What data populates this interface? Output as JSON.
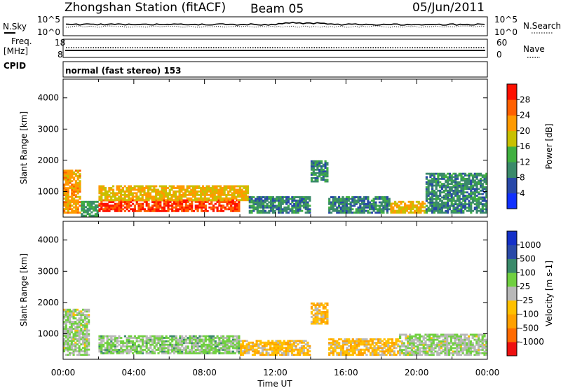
{
  "header": {
    "station": "Zhongshan Station (fitACF)",
    "beam": "Beam 05",
    "date": "05/Jun/2011"
  },
  "summary": {
    "nsky_label": "N.Sky",
    "nsearch_label": "N.Search",
    "noise_ticks": [
      "10^5",
      "10^0"
    ],
    "freq_label": "Freq.",
    "freq_unit": "[MHz]",
    "freq_ticks": [
      "18",
      "8"
    ],
    "nave_label": "Nave",
    "nave_ticks": [
      "60",
      "0"
    ],
    "cpid_label": "CPID",
    "cpid_text": "normal (fast stereo) 153"
  },
  "axes": {
    "xlabel": "Time UT",
    "x_ticks": [
      "00:00",
      "04:00",
      "08:00",
      "12:00",
      "16:00",
      "20:00",
      "00:00"
    ],
    "ylabel": "Slant Range [km]",
    "y_ticks": [
      "4000",
      "3000",
      "2000",
      "1000"
    ]
  },
  "colors": {
    "power": [
      "#1030ff",
      "#2848a8",
      "#3a8a6a",
      "#40b040",
      "#c8c000",
      "#ff9a00",
      "#ff6000",
      "#ff1000"
    ],
    "velocity": [
      "#ee1010",
      "#ff6a00",
      "#ffa000",
      "#ffc000",
      "#b8b8b8",
      "#70d040",
      "#3a8a6a",
      "#2a4aa8",
      "#1430c8"
    ]
  },
  "chart_data": [
    {
      "type": "heatmap",
      "name": "Power [dB]",
      "title": "",
      "xlabel": "Time UT",
      "ylabel": "Slant Range [km]",
      "xlim": [
        "00:00",
        "24:00"
      ],
      "ylim": [
        180,
        4600
      ],
      "colorbar": {
        "label": "Power [dB]",
        "ticks": [
          "28",
          "24",
          "20",
          "16",
          "12",
          "8",
          "4"
        ],
        "range": [
          0,
          32
        ]
      },
      "regions": [
        {
          "t": [
            0.0,
            1.0
          ],
          "r": [
            300,
            1700
          ],
          "value": 22
        },
        {
          "t": [
            1.0,
            2.0
          ],
          "r": [
            200,
            700
          ],
          "value": 12
        },
        {
          "t": [
            2.0,
            10.0
          ],
          "r": [
            350,
            750
          ],
          "value": 28
        },
        {
          "t": [
            2.0,
            10.5
          ],
          "r": [
            700,
            1200
          ],
          "value": 20
        },
        {
          "t": [
            10.5,
            14.0
          ],
          "r": [
            300,
            850
          ],
          "value": 10
        },
        {
          "t": [
            14.0,
            15.0
          ],
          "r": [
            1300,
            2000
          ],
          "value": 10
        },
        {
          "t": [
            15.0,
            18.5
          ],
          "r": [
            300,
            850
          ],
          "value": 10
        },
        {
          "t": [
            18.5,
            20.5
          ],
          "r": [
            300,
            700
          ],
          "value": 20
        },
        {
          "t": [
            20.5,
            24.0
          ],
          "r": [
            300,
            1600
          ],
          "value": 10
        }
      ]
    },
    {
      "type": "heatmap",
      "name": "Velocity [m s^-1]",
      "title": "",
      "xlabel": "Time UT",
      "ylabel": "Slant Range [km]",
      "xlim": [
        "00:00",
        "24:00"
      ],
      "ylim": [
        180,
        4600
      ],
      "colorbar": {
        "label": "Velocity [m s-1]",
        "ticks": [
          "1000",
          "500",
          "100",
          "25",
          "-25",
          "-100",
          "-500",
          "-1000"
        ],
        "range": [
          -1200,
          1200
        ]
      },
      "regions": [
        {
          "t": [
            0.0,
            1.5
          ],
          "r": [
            300,
            1800
          ],
          "value": 100
        },
        {
          "t": [
            2.0,
            10.0
          ],
          "r": [
            350,
            950
          ],
          "value": 200
        },
        {
          "t": [
            10.0,
            14.0
          ],
          "r": [
            300,
            800
          ],
          "value": -300
        },
        {
          "t": [
            14.0,
            15.0
          ],
          "r": [
            1300,
            2000
          ],
          "value": -300
        },
        {
          "t": [
            15.0,
            19.0
          ],
          "r": [
            300,
            850
          ],
          "value": -300
        },
        {
          "t": [
            19.0,
            24.0
          ],
          "r": [
            300,
            1000
          ],
          "value": 100
        }
      ]
    }
  ]
}
